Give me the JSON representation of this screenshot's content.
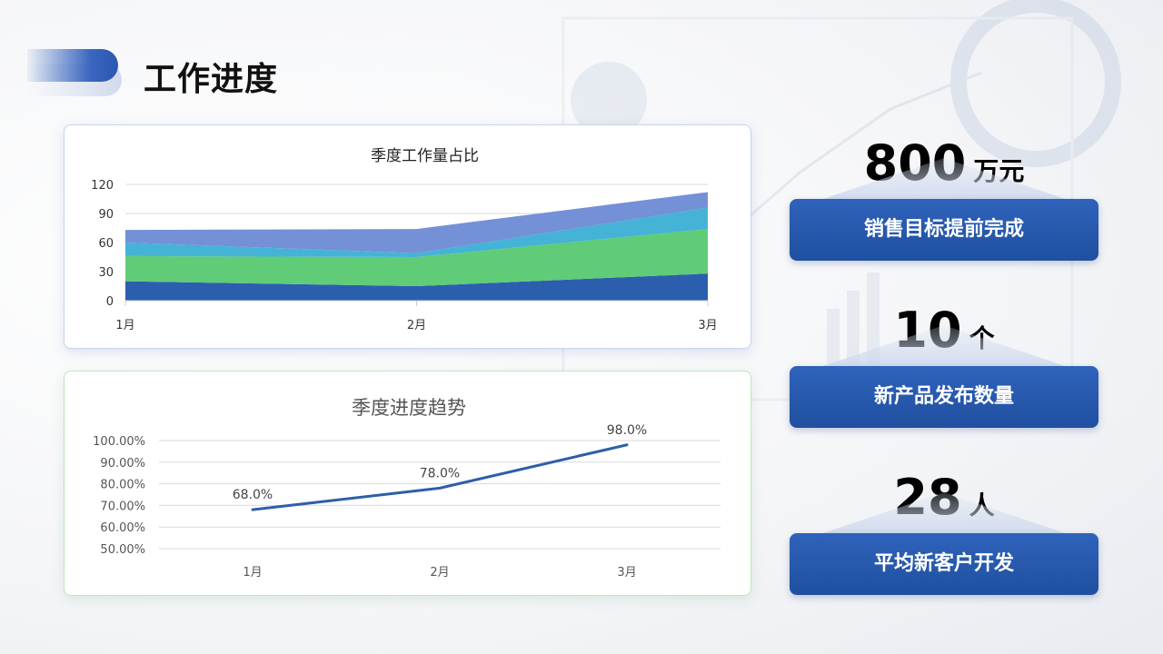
{
  "page": {
    "title": "工作进度"
  },
  "chart_data": [
    {
      "type": "area",
      "stacked": true,
      "title": "季度工作量占比",
      "categories": [
        "1月",
        "2月",
        "3月"
      ],
      "ylim": [
        0,
        120
      ],
      "yticks": [
        "0",
        "30",
        "60",
        "90",
        "120"
      ],
      "grid": true,
      "series": [
        {
          "color": "#2b5fae",
          "values": [
            20,
            15,
            28
          ]
        },
        {
          "color": "#60cc77",
          "values": [
            26,
            30,
            46
          ]
        },
        {
          "color": "#45b3d6",
          "values": [
            14,
            4,
            22
          ]
        },
        {
          "color": "#7490d6",
          "values": [
            13,
            25,
            16
          ]
        }
      ]
    },
    {
      "type": "line",
      "title": "季度进度趋势",
      "categories": [
        "1月",
        "2月",
        "3月"
      ],
      "ylim": [
        50,
        100
      ],
      "yticks": [
        "50.00%",
        "60.00%",
        "70.00%",
        "80.00%",
        "90.00%",
        "100.00%"
      ],
      "grid": true,
      "series": [
        {
          "color": "#2f5ea8",
          "values": [
            68.0,
            78.0,
            98.0
          ],
          "data_labels": [
            "68.0%",
            "78.0%",
            "98.0%"
          ]
        }
      ]
    }
  ],
  "kpis": [
    {
      "value": "800",
      "unit": "万元",
      "label": "销售目标提前完成"
    },
    {
      "value": "10",
      "unit": "个",
      "label": "新产品发布数量"
    },
    {
      "value": "28",
      "unit": "人",
      "label": "平均新客户开发"
    }
  ]
}
